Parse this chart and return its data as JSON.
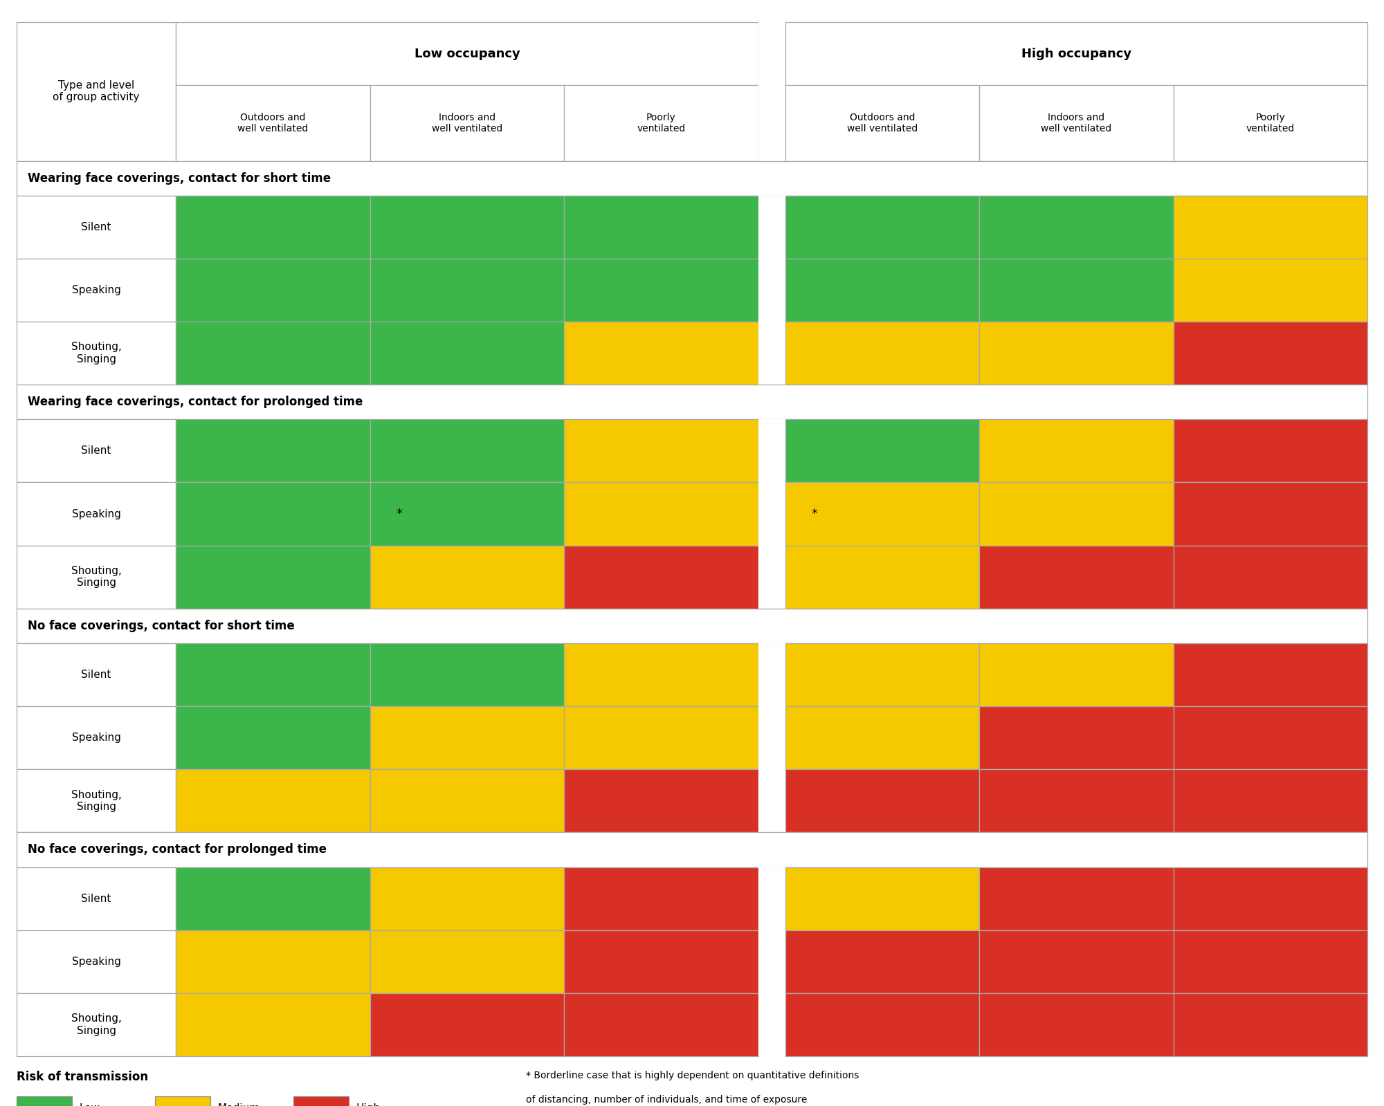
{
  "green": "#3cb54a",
  "yellow": "#f5c800",
  "red": "#d93025",
  "white": "#ffffff",
  "border": "#aaaaaa",
  "sections": [
    {
      "title": "Wearing face coverings, contact for short time",
      "rows": [
        {
          "label": "Silent",
          "colors": [
            "G",
            "G",
            "G",
            "G",
            "G",
            "Y"
          ],
          "asterisk": []
        },
        {
          "label": "Speaking",
          "colors": [
            "G",
            "G",
            "G",
            "G",
            "G",
            "Y"
          ],
          "asterisk": []
        },
        {
          "label": "Shouting,\nSinging",
          "colors": [
            "G",
            "G",
            "Y",
            "Y",
            "Y",
            "R"
          ],
          "asterisk": []
        }
      ]
    },
    {
      "title": "Wearing face coverings, contact for prolonged time",
      "rows": [
        {
          "label": "Silent",
          "colors": [
            "G",
            "G",
            "Y",
            "G",
            "Y",
            "R"
          ],
          "asterisk": []
        },
        {
          "label": "Speaking",
          "colors": [
            "G",
            "G",
            "Y",
            "Y",
            "Y",
            "R"
          ],
          "asterisk": [
            1,
            3
          ]
        },
        {
          "label": "Shouting,\nSinging",
          "colors": [
            "G",
            "Y",
            "R",
            "Y",
            "R",
            "R"
          ],
          "asterisk": []
        }
      ]
    },
    {
      "title": "No face coverings, contact for short time",
      "rows": [
        {
          "label": "Silent",
          "colors": [
            "G",
            "G",
            "Y",
            "Y",
            "Y",
            "R"
          ],
          "asterisk": []
        },
        {
          "label": "Speaking",
          "colors": [
            "G",
            "Y",
            "Y",
            "Y",
            "R",
            "R"
          ],
          "asterisk": []
        },
        {
          "label": "Shouting,\nSinging",
          "colors": [
            "Y",
            "Y",
            "R",
            "R",
            "R",
            "R"
          ],
          "asterisk": []
        }
      ]
    },
    {
      "title": "No face coverings, contact for prolonged time",
      "rows": [
        {
          "label": "Silent",
          "colors": [
            "G",
            "Y",
            "R",
            "Y",
            "R",
            "R"
          ],
          "asterisk": []
        },
        {
          "label": "Speaking",
          "colors": [
            "Y",
            "Y",
            "R",
            "R",
            "R",
            "R"
          ],
          "asterisk": []
        },
        {
          "label": "Shouting,\nSinging",
          "colors": [
            "Y",
            "R",
            "R",
            "R",
            "R",
            "R"
          ],
          "asterisk": []
        }
      ]
    }
  ],
  "col_headers_low": [
    "Outdoors and\nwell ventilated",
    "Indoors and\nwell ventilated",
    "Poorly\nventilated"
  ],
  "col_headers_high": [
    "Outdoors and\nwell ventilated",
    "Indoors and\nwell ventilated",
    "Poorly\nventilated"
  ],
  "group_header_low": "Low occupancy",
  "group_header_high": "High occupancy",
  "corner_label": "Type and level\nof group activity",
  "legend_title": "Risk of transmission",
  "legend_items": [
    {
      "label": "Low",
      "color": "#3cb54a"
    },
    {
      "label": "Medium",
      "color": "#f5c800"
    },
    {
      "label": "High",
      "color": "#d93025"
    }
  ],
  "footnote_line1": "* Borderline case that is highly dependent on quantitative definitions",
  "footnote_line2": "of distancing, number of individuals, and time of exposure"
}
